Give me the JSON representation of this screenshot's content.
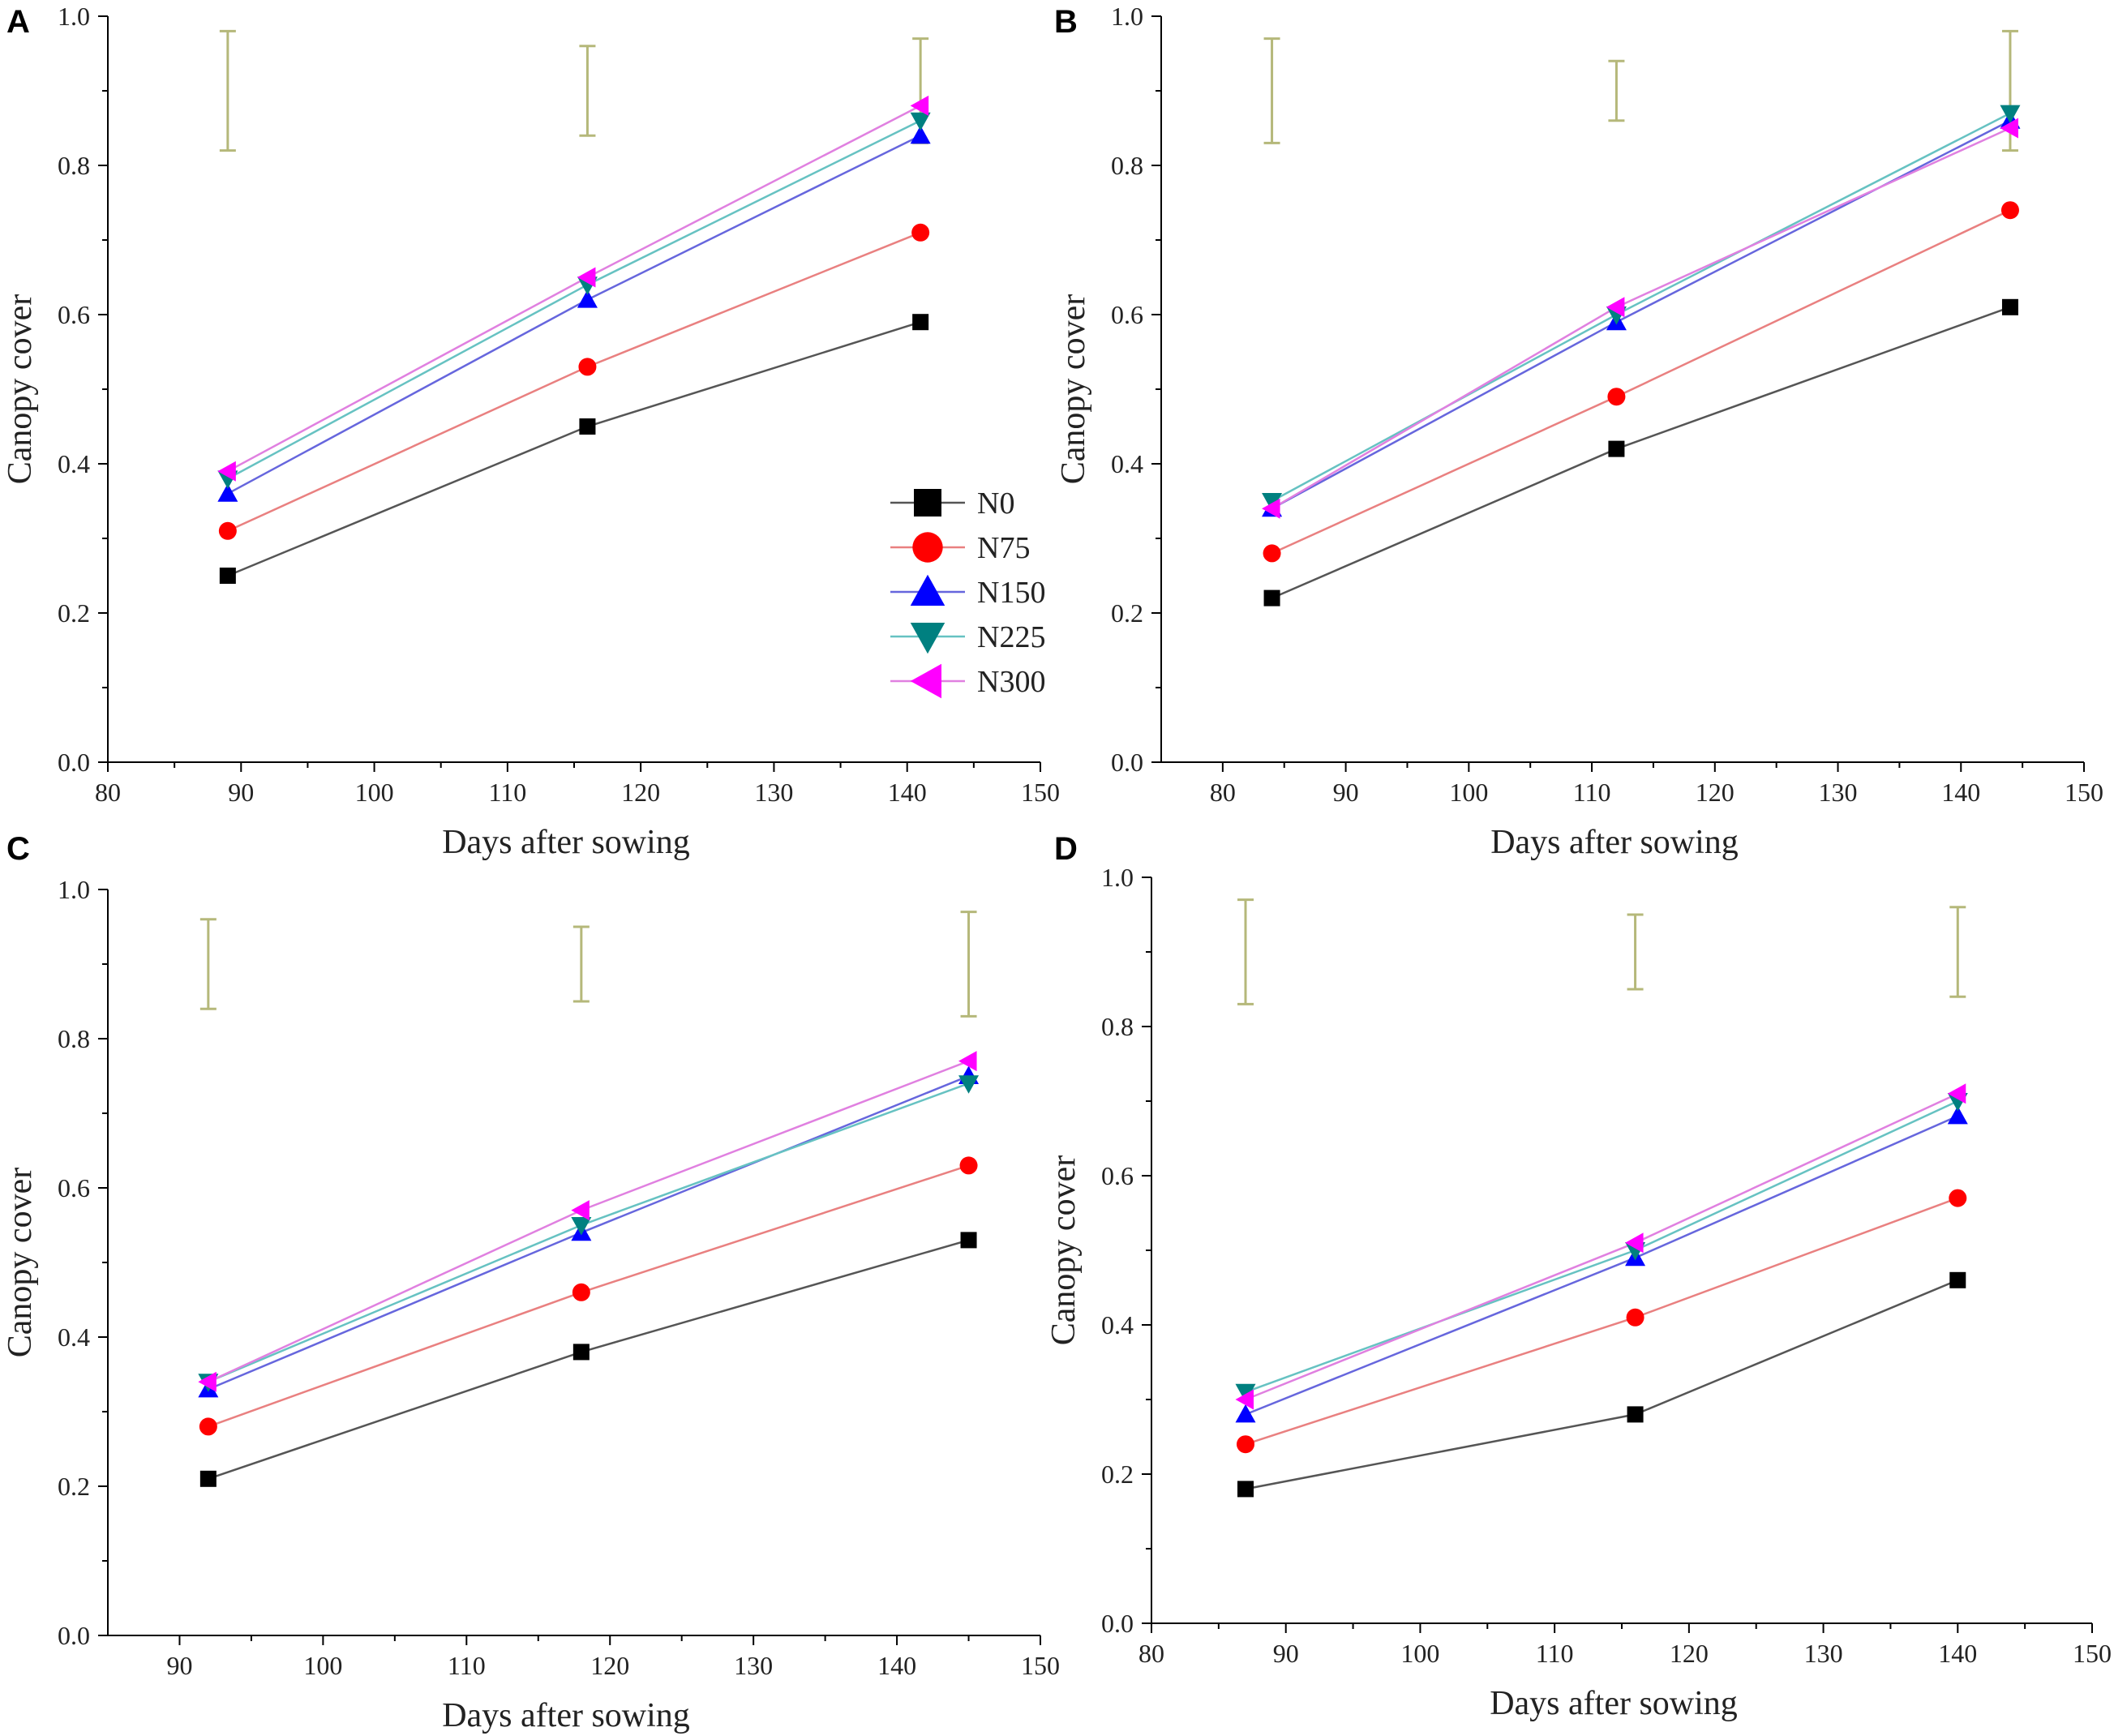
{
  "figure": {
    "legend": [
      {
        "key": "N0",
        "label": "N0",
        "color": "#000000",
        "marker": "square",
        "line_color": "#555555"
      },
      {
        "key": "N75",
        "label": "N75",
        "color": "#ff0000",
        "marker": "circle",
        "line_color": "#e98080"
      },
      {
        "key": "N150",
        "label": "N150",
        "color": "#0000ff",
        "marker": "triangle-up",
        "line_color": "#6666dd"
      },
      {
        "key": "N225",
        "label": "N225",
        "color": "#008080",
        "marker": "triangle-down",
        "line_color": "#66c2c2"
      },
      {
        "key": "N300",
        "label": "N300",
        "color": "#ff00ff",
        "marker": "triangle-left",
        "line_color": "#e080e0"
      }
    ],
    "error_bar_color": "#b5b87a"
  },
  "chart_data": [
    {
      "panel": "A",
      "type": "line",
      "xlabel": "Days after sowing",
      "ylabel": "Canopy cover",
      "xlim": [
        80,
        150
      ],
      "ylim": [
        0.0,
        1.0
      ],
      "xticks": [
        "80",
        "90",
        "100",
        "110",
        "120",
        "130",
        "140",
        "150"
      ],
      "yticks": [
        "0.0",
        "0.2",
        "0.4",
        "0.6",
        "0.8",
        "1.0"
      ],
      "x": [
        89,
        116,
        141
      ],
      "series": [
        {
          "name": "N0",
          "values": [
            0.25,
            0.45,
            0.59
          ]
        },
        {
          "name": "N75",
          "values": [
            0.31,
            0.53,
            0.71
          ]
        },
        {
          "name": "N150",
          "values": [
            0.36,
            0.62,
            0.84
          ]
        },
        {
          "name": "N225",
          "values": [
            0.38,
            0.64,
            0.86
          ]
        },
        {
          "name": "N300",
          "values": [
            0.39,
            0.65,
            0.88
          ]
        }
      ],
      "error_bars": [
        {
          "x": 89,
          "low": 0.82,
          "high": 0.98
        },
        {
          "x": 116,
          "low": 0.84,
          "high": 0.96
        },
        {
          "x": 141,
          "low": 0.83,
          "high": 0.97
        }
      ],
      "show_legend": true
    },
    {
      "panel": "B",
      "type": "line",
      "xlabel": "Days after sowing",
      "ylabel": "Canopy cover",
      "xlim": [
        75,
        150
      ],
      "ylim": [
        0.0,
        1.0
      ],
      "xticks": [
        "80",
        "90",
        "100",
        "110",
        "120",
        "130",
        "140",
        "150"
      ],
      "yticks": [
        "0.0",
        "0.2",
        "0.4",
        "0.6",
        "0.8",
        "1.0"
      ],
      "x": [
        84,
        112,
        144
      ],
      "series": [
        {
          "name": "N0",
          "values": [
            0.22,
            0.42,
            0.61
          ]
        },
        {
          "name": "N75",
          "values": [
            0.28,
            0.49,
            0.74
          ]
        },
        {
          "name": "N150",
          "values": [
            0.34,
            0.59,
            0.86
          ]
        },
        {
          "name": "N225",
          "values": [
            0.35,
            0.6,
            0.87
          ]
        },
        {
          "name": "N300",
          "values": [
            0.34,
            0.61,
            0.85
          ]
        }
      ],
      "error_bars": [
        {
          "x": 84,
          "low": 0.83,
          "high": 0.97
        },
        {
          "x": 112,
          "low": 0.86,
          "high": 0.94
        },
        {
          "x": 144,
          "low": 0.82,
          "high": 0.98
        }
      ],
      "show_legend": false
    },
    {
      "panel": "C",
      "type": "line",
      "xlabel": "Days after sowing",
      "ylabel": "Canopy cover",
      "xlim": [
        85,
        150
      ],
      "ylim": [
        0.0,
        1.0
      ],
      "xticks": [
        "90",
        "100",
        "110",
        "120",
        "130",
        "140",
        "150"
      ],
      "yticks": [
        "0.0",
        "0.2",
        "0.4",
        "0.6",
        "0.8",
        "1.0"
      ],
      "x": [
        92,
        118,
        145
      ],
      "series": [
        {
          "name": "N0",
          "values": [
            0.21,
            0.38,
            0.53
          ]
        },
        {
          "name": "N75",
          "values": [
            0.28,
            0.46,
            0.63
          ]
        },
        {
          "name": "N150",
          "values": [
            0.33,
            0.54,
            0.75
          ]
        },
        {
          "name": "N225",
          "values": [
            0.34,
            0.55,
            0.74
          ]
        },
        {
          "name": "N300",
          "values": [
            0.34,
            0.57,
            0.77
          ]
        }
      ],
      "error_bars": [
        {
          "x": 92,
          "low": 0.84,
          "high": 0.96
        },
        {
          "x": 118,
          "low": 0.85,
          "high": 0.95
        },
        {
          "x": 145,
          "low": 0.83,
          "high": 0.97
        }
      ],
      "show_legend": false
    },
    {
      "panel": "D",
      "type": "line",
      "xlabel": "Days after sowing",
      "ylabel": "Canopy cover",
      "xlim": [
        80,
        150
      ],
      "ylim": [
        0.0,
        1.0
      ],
      "xticks": [
        "80",
        "90",
        "100",
        "110",
        "120",
        "130",
        "140",
        "150"
      ],
      "yticks": [
        "0.0",
        "0.2",
        "0.4",
        "0.6",
        "0.8",
        "1.0"
      ],
      "x": [
        87,
        116,
        140
      ],
      "series": [
        {
          "name": "N0",
          "values": [
            0.18,
            0.28,
            0.46
          ]
        },
        {
          "name": "N75",
          "values": [
            0.24,
            0.41,
            0.57
          ]
        },
        {
          "name": "N150",
          "values": [
            0.28,
            0.49,
            0.68
          ]
        },
        {
          "name": "N225",
          "values": [
            0.31,
            0.5,
            0.7
          ]
        },
        {
          "name": "N300",
          "values": [
            0.3,
            0.51,
            0.71
          ]
        }
      ],
      "error_bars": [
        {
          "x": 87,
          "low": 0.83,
          "high": 0.97
        },
        {
          "x": 116,
          "low": 0.85,
          "high": 0.95
        },
        {
          "x": 140,
          "low": 0.84,
          "high": 0.96
        }
      ],
      "show_legend": false
    }
  ]
}
